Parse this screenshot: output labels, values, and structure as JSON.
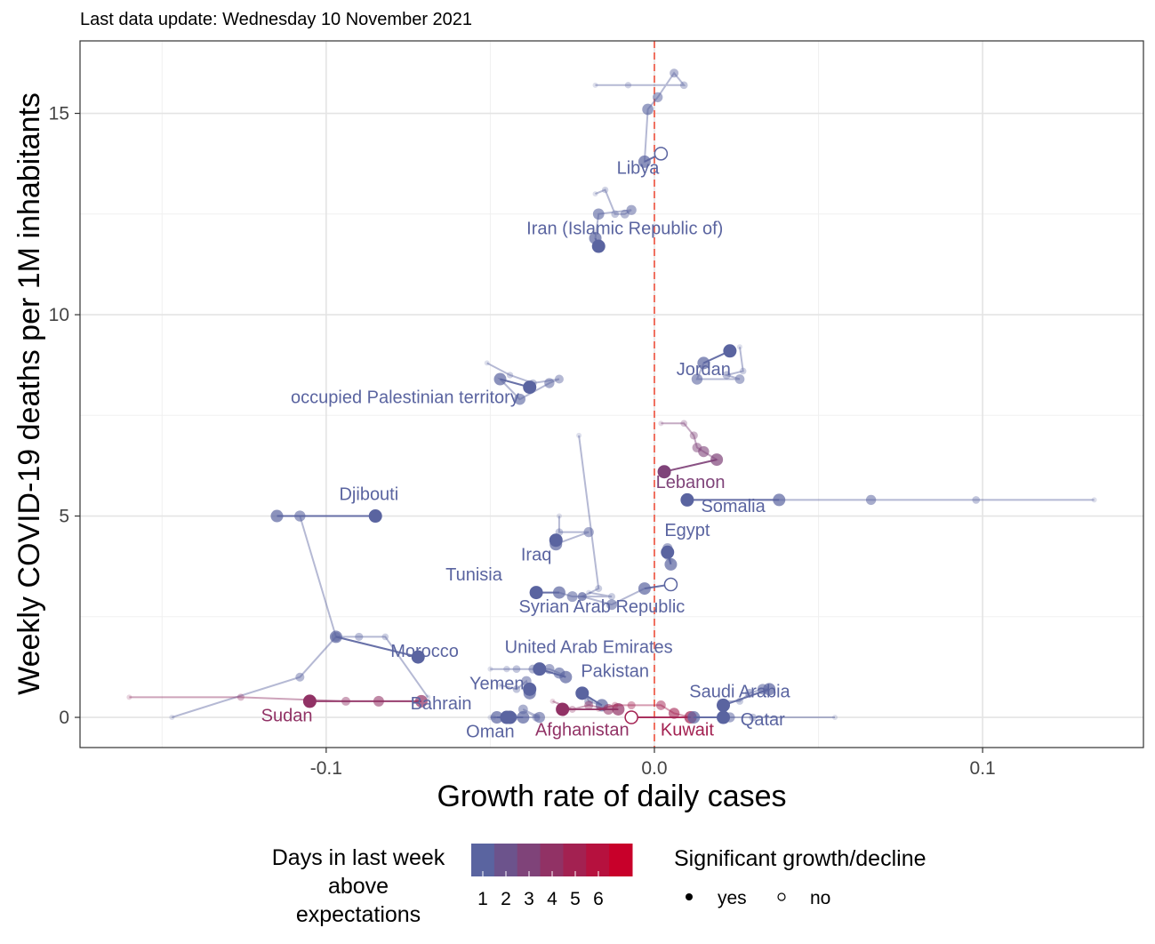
{
  "subtitle": "Last data update: Wednesday 10 November 2021",
  "chart_data": {
    "type": "scatter",
    "xlabel": "Growth rate of daily cases",
    "ylabel": "Weekly COVID-19 deaths per 1M inhabitants",
    "xlim": [
      -0.175,
      0.149
    ],
    "ylim": [
      -0.75,
      16.8
    ],
    "x_ticks": [
      -0.1,
      0.0,
      0.1
    ],
    "x_tick_labels": [
      "-0.1",
      "0.0",
      "0.1"
    ],
    "y_ticks": [
      0,
      5,
      10,
      15
    ],
    "y_tick_labels": [
      "0",
      "5",
      "10",
      "15"
    ],
    "grid": true,
    "reference_line": {
      "x": 0,
      "color": "#f07060",
      "style": "dashed"
    },
    "legend": {
      "position": "bottom",
      "color_title": "Days in last week\nabove\nexpectations",
      "color_labels": [
        "1",
        "2",
        "3",
        "4",
        "5",
        "6"
      ],
      "color_low": "#5a64a0",
      "color_high": "#c8002a",
      "shape_title": "Significant growth/decline",
      "shape_labels": [
        "yes",
        "no"
      ]
    },
    "series": [
      {
        "name": "Libya",
        "days": 1,
        "significant": false,
        "trail": [
          [
            -0.018,
            15.7
          ],
          [
            -0.008,
            15.7
          ],
          [
            0.009,
            15.7
          ],
          [
            0.006,
            16.0
          ],
          [
            0.001,
            15.4
          ],
          [
            -0.002,
            15.1
          ],
          [
            -0.003,
            13.8
          ]
        ],
        "current": [
          0.002,
          14.0
        ],
        "label_pos": [
          -0.005,
          13.5
        ]
      },
      {
        "name": "Iran (Islamic Republic of)",
        "days": 1,
        "significant": true,
        "trail": [
          [
            -0.018,
            13.0
          ],
          [
            -0.015,
            13.1
          ],
          [
            -0.012,
            12.5
          ],
          [
            -0.009,
            12.5
          ],
          [
            -0.007,
            12.6
          ],
          [
            -0.017,
            12.5
          ],
          [
            -0.018,
            11.9
          ]
        ],
        "current": [
          -0.017,
          11.7
        ],
        "label_pos": [
          -0.009,
          12.0
        ]
      },
      {
        "name": "Jordan",
        "days": 1,
        "significant": true,
        "trail": [
          [
            0.026,
            9.2
          ],
          [
            0.027,
            8.6
          ],
          [
            0.022,
            8.5
          ],
          [
            0.026,
            8.4
          ],
          [
            0.013,
            8.4
          ],
          [
            0.015,
            8.8
          ]
        ],
        "current": [
          0.023,
          9.1
        ],
        "label_pos": [
          0.015,
          8.5
        ]
      },
      {
        "name": "occupied Palestinian territory",
        "days": 1,
        "significant": true,
        "trail": [
          [
            -0.051,
            8.8
          ],
          [
            -0.044,
            8.5
          ],
          [
            -0.037,
            8.3
          ],
          [
            -0.029,
            8.4
          ],
          [
            -0.032,
            8.3
          ],
          [
            -0.041,
            7.9
          ],
          [
            -0.047,
            8.4
          ]
        ],
        "current": [
          -0.038,
          8.2
        ],
        "label_pos": [
          -0.076,
          7.8
        ]
      },
      {
        "name": "Lebanon",
        "days": 3,
        "significant": true,
        "trail": [
          [
            0.002,
            7.3
          ],
          [
            0.009,
            7.3
          ],
          [
            0.012,
            7.0
          ],
          [
            0.013,
            6.7
          ],
          [
            0.015,
            6.6
          ],
          [
            0.019,
            6.4
          ]
        ],
        "current": [
          0.003,
          6.1
        ],
        "label_pos": [
          0.011,
          5.7
        ]
      },
      {
        "name": "Somalia",
        "days": 1,
        "significant": true,
        "trail": [
          [
            0.134,
            5.4
          ],
          [
            0.098,
            5.4
          ],
          [
            0.066,
            5.4
          ],
          [
            0.038,
            5.4
          ]
        ],
        "current": [
          0.01,
          5.4
        ],
        "label_pos": [
          0.024,
          5.1
        ]
      },
      {
        "name": "Djibouti",
        "days": 1,
        "significant": true,
        "trail": [
          [
            -0.069,
            0.5
          ],
          [
            -0.082,
            2.0
          ],
          [
            -0.09,
            2.0
          ],
          [
            -0.097,
            2.0
          ],
          [
            -0.108,
            5.0
          ],
          [
            -0.115,
            5.0
          ]
        ],
        "current": [
          -0.085,
          5.0
        ],
        "label_pos": [
          -0.087,
          5.4
        ]
      },
      {
        "name": "Iraq",
        "days": 1,
        "significant": true,
        "trail": [
          [
            -0.029,
            5.0
          ],
          [
            -0.029,
            4.6
          ],
          [
            -0.02,
            4.6
          ],
          [
            -0.03,
            4.3
          ]
        ],
        "current": [
          -0.03,
          4.4
        ],
        "label_pos": [
          -0.036,
          3.9
        ]
      },
      {
        "name": "Egypt",
        "days": 1,
        "significant": true,
        "trail": [
          [
            0.005,
            3.9
          ],
          [
            0.004,
            4.0
          ],
          [
            0.004,
            4.2
          ],
          [
            0.005,
            3.8
          ]
        ],
        "current": [
          0.004,
          4.1
        ],
        "label_pos": [
          0.01,
          4.5
        ]
      },
      {
        "name": "Tunisia",
        "days": 1,
        "significant": true,
        "trail": [
          [
            -0.02,
            3.1
          ],
          [
            -0.013,
            3.0
          ],
          [
            -0.022,
            3.0
          ],
          [
            -0.025,
            3.0
          ],
          [
            -0.029,
            3.1
          ]
        ],
        "current": [
          -0.036,
          3.1
        ],
        "label_pos": [
          -0.055,
          3.4
        ]
      },
      {
        "name": "Syrian Arab Republic",
        "days": 1,
        "significant": false,
        "trail": [
          [
            -0.023,
            7.0
          ],
          [
            -0.017,
            3.2
          ],
          [
            -0.022,
            3.0
          ],
          [
            -0.013,
            2.8
          ],
          [
            -0.003,
            3.2
          ]
        ],
        "current": [
          0.005,
          3.3
        ],
        "label_pos": [
          -0.016,
          2.6
        ]
      },
      {
        "name": "Morocco",
        "days": 1,
        "significant": true,
        "trail": [
          [
            -0.147,
            0.0
          ],
          [
            -0.108,
            1.0
          ],
          [
            -0.097,
            2.0
          ]
        ],
        "current": [
          -0.072,
          1.5
        ],
        "label_pos": [
          -0.07,
          1.5
        ]
      },
      {
        "name": "United Arab Emirates",
        "days": 1,
        "significant": true,
        "trail": [
          [
            -0.05,
            1.2
          ],
          [
            -0.045,
            1.2
          ],
          [
            -0.042,
            1.2
          ],
          [
            -0.037,
            1.2
          ],
          [
            -0.032,
            1.2
          ],
          [
            -0.029,
            1.1
          ],
          [
            -0.027,
            1.0
          ]
        ],
        "current": [
          -0.035,
          1.2
        ],
        "label_pos": [
          -0.02,
          1.6
        ]
      },
      {
        "name": "Pakistan",
        "days": 1,
        "significant": true,
        "trail": [
          [
            -0.021,
            0.6
          ],
          [
            -0.02,
            0.4
          ],
          [
            -0.016,
            0.3
          ]
        ],
        "current": [
          -0.022,
          0.6
        ],
        "label_pos": [
          -0.012,
          1.0
        ]
      },
      {
        "name": "Yemen",
        "days": 1,
        "significant": true,
        "trail": [
          [
            -0.047,
            0.8
          ],
          [
            -0.042,
            0.7
          ],
          [
            -0.039,
            0.9
          ],
          [
            -0.038,
            0.6
          ]
        ],
        "current": [
          -0.038,
          0.7
        ],
        "label_pos": [
          -0.048,
          0.7
        ]
      },
      {
        "name": "Sudan",
        "days": 4,
        "significant": true,
        "trail": [
          [
            -0.16,
            0.5
          ],
          [
            -0.126,
            0.5
          ],
          [
            -0.094,
            0.4
          ],
          [
            -0.084,
            0.4
          ],
          [
            -0.071,
            0.4
          ]
        ],
        "current": [
          -0.105,
          0.4
        ],
        "label_pos": [
          -0.112,
          -0.1
        ]
      },
      {
        "name": "Saudi Arabia",
        "days": 1,
        "significant": true,
        "trail": [
          [
            0.02,
            0.4
          ],
          [
            0.026,
            0.4
          ],
          [
            0.029,
            0.6
          ],
          [
            0.033,
            0.7
          ],
          [
            0.035,
            0.7
          ]
        ],
        "current": [
          0.021,
          0.3
        ],
        "label_pos": [
          0.026,
          0.5
        ]
      },
      {
        "name": "Bahrain",
        "days": 1,
        "significant": true,
        "trail": [
          [
            -0.049,
            0.0
          ],
          [
            -0.046,
            0.0
          ],
          [
            -0.036,
            0.0
          ],
          [
            -0.04,
            0.2
          ],
          [
            -0.035,
            0.0
          ],
          [
            -0.04,
            0.0
          ]
        ],
        "current": [
          -0.044,
          0.0
        ],
        "label_pos": [
          -0.065,
          0.2
        ]
      },
      {
        "name": "Oman",
        "days": 1,
        "significant": true,
        "trail": [
          [
            -0.05,
            0.0
          ],
          [
            -0.043,
            0.0
          ],
          [
            -0.048,
            0.0
          ]
        ],
        "current": [
          -0.045,
          0.0
        ],
        "label_pos": [
          -0.05,
          -0.5
        ]
      },
      {
        "name": "Afghanistan",
        "days": 4,
        "significant": true,
        "trail": [
          [
            -0.031,
            0.4
          ],
          [
            -0.025,
            0.2
          ],
          [
            -0.02,
            0.3
          ],
          [
            -0.014,
            0.2
          ],
          [
            -0.011,
            0.2
          ]
        ],
        "current": [
          -0.028,
          0.2
        ],
        "label_pos": [
          -0.022,
          -0.45
        ]
      },
      {
        "name": "Kuwait",
        "days": 5,
        "significant": false,
        "trail": [
          [
            -0.017,
            0.2
          ],
          [
            -0.012,
            0.3
          ],
          [
            -0.007,
            0.3
          ],
          [
            0.002,
            0.3
          ],
          [
            0.006,
            0.1
          ],
          [
            0.011,
            0.0
          ]
        ],
        "current": [
          -0.007,
          0.0
        ],
        "label_pos": [
          0.01,
          -0.45
        ]
      },
      {
        "name": "Qatar",
        "days": 1,
        "significant": true,
        "trail": [
          [
            0.055,
            0.0
          ],
          [
            0.03,
            0.0
          ],
          [
            0.023,
            0.0
          ],
          [
            0.012,
            0.0
          ]
        ],
        "current": [
          0.021,
          0.0
        ],
        "label_pos": [
          0.033,
          -0.2
        ]
      }
    ]
  }
}
